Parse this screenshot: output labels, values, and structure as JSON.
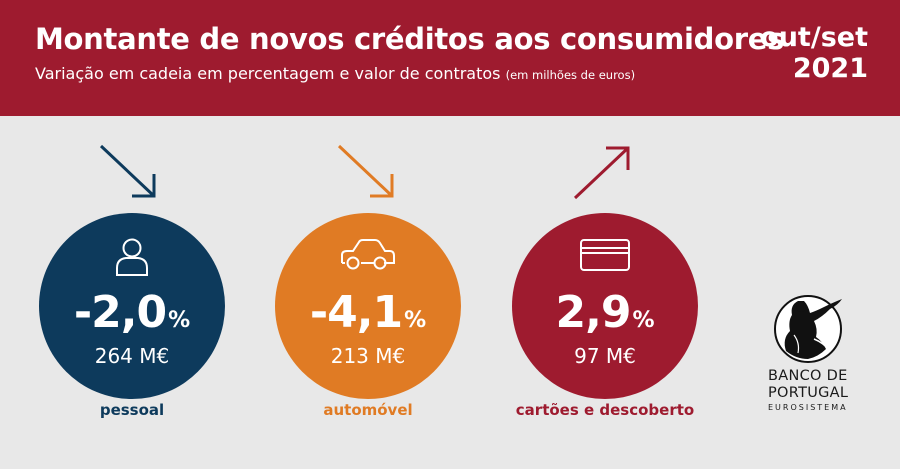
{
  "header": {
    "title": "Montante de novos créditos aos consumidores",
    "subtitle_main": "Variação em cadeia em percentagem e valor de contratos",
    "subtitle_note": "(em milhões de euros)",
    "period_line1": "out/set",
    "period_line2": "2021"
  },
  "items": [
    {
      "pct": "-2,0",
      "unit": "%",
      "value": "264 M€",
      "label": "pessoal",
      "trend": "down",
      "icon": "person-icon",
      "color": "#0d3a5c"
    },
    {
      "pct": "-4,1",
      "unit": "%",
      "value": "213 M€",
      "label": "automóvel",
      "trend": "down",
      "icon": "car-icon",
      "color": "#e07b24"
    },
    {
      "pct": "2,9",
      "unit": "%",
      "value": "97 M€",
      "label": "cartões e descoberto",
      "trend": "up",
      "icon": "credit-card-icon",
      "color": "#9e1b2f"
    }
  ],
  "logo": {
    "line1": "BANCO DE",
    "line2": "PORTUGAL",
    "line3": "EUROSISTEMA"
  }
}
